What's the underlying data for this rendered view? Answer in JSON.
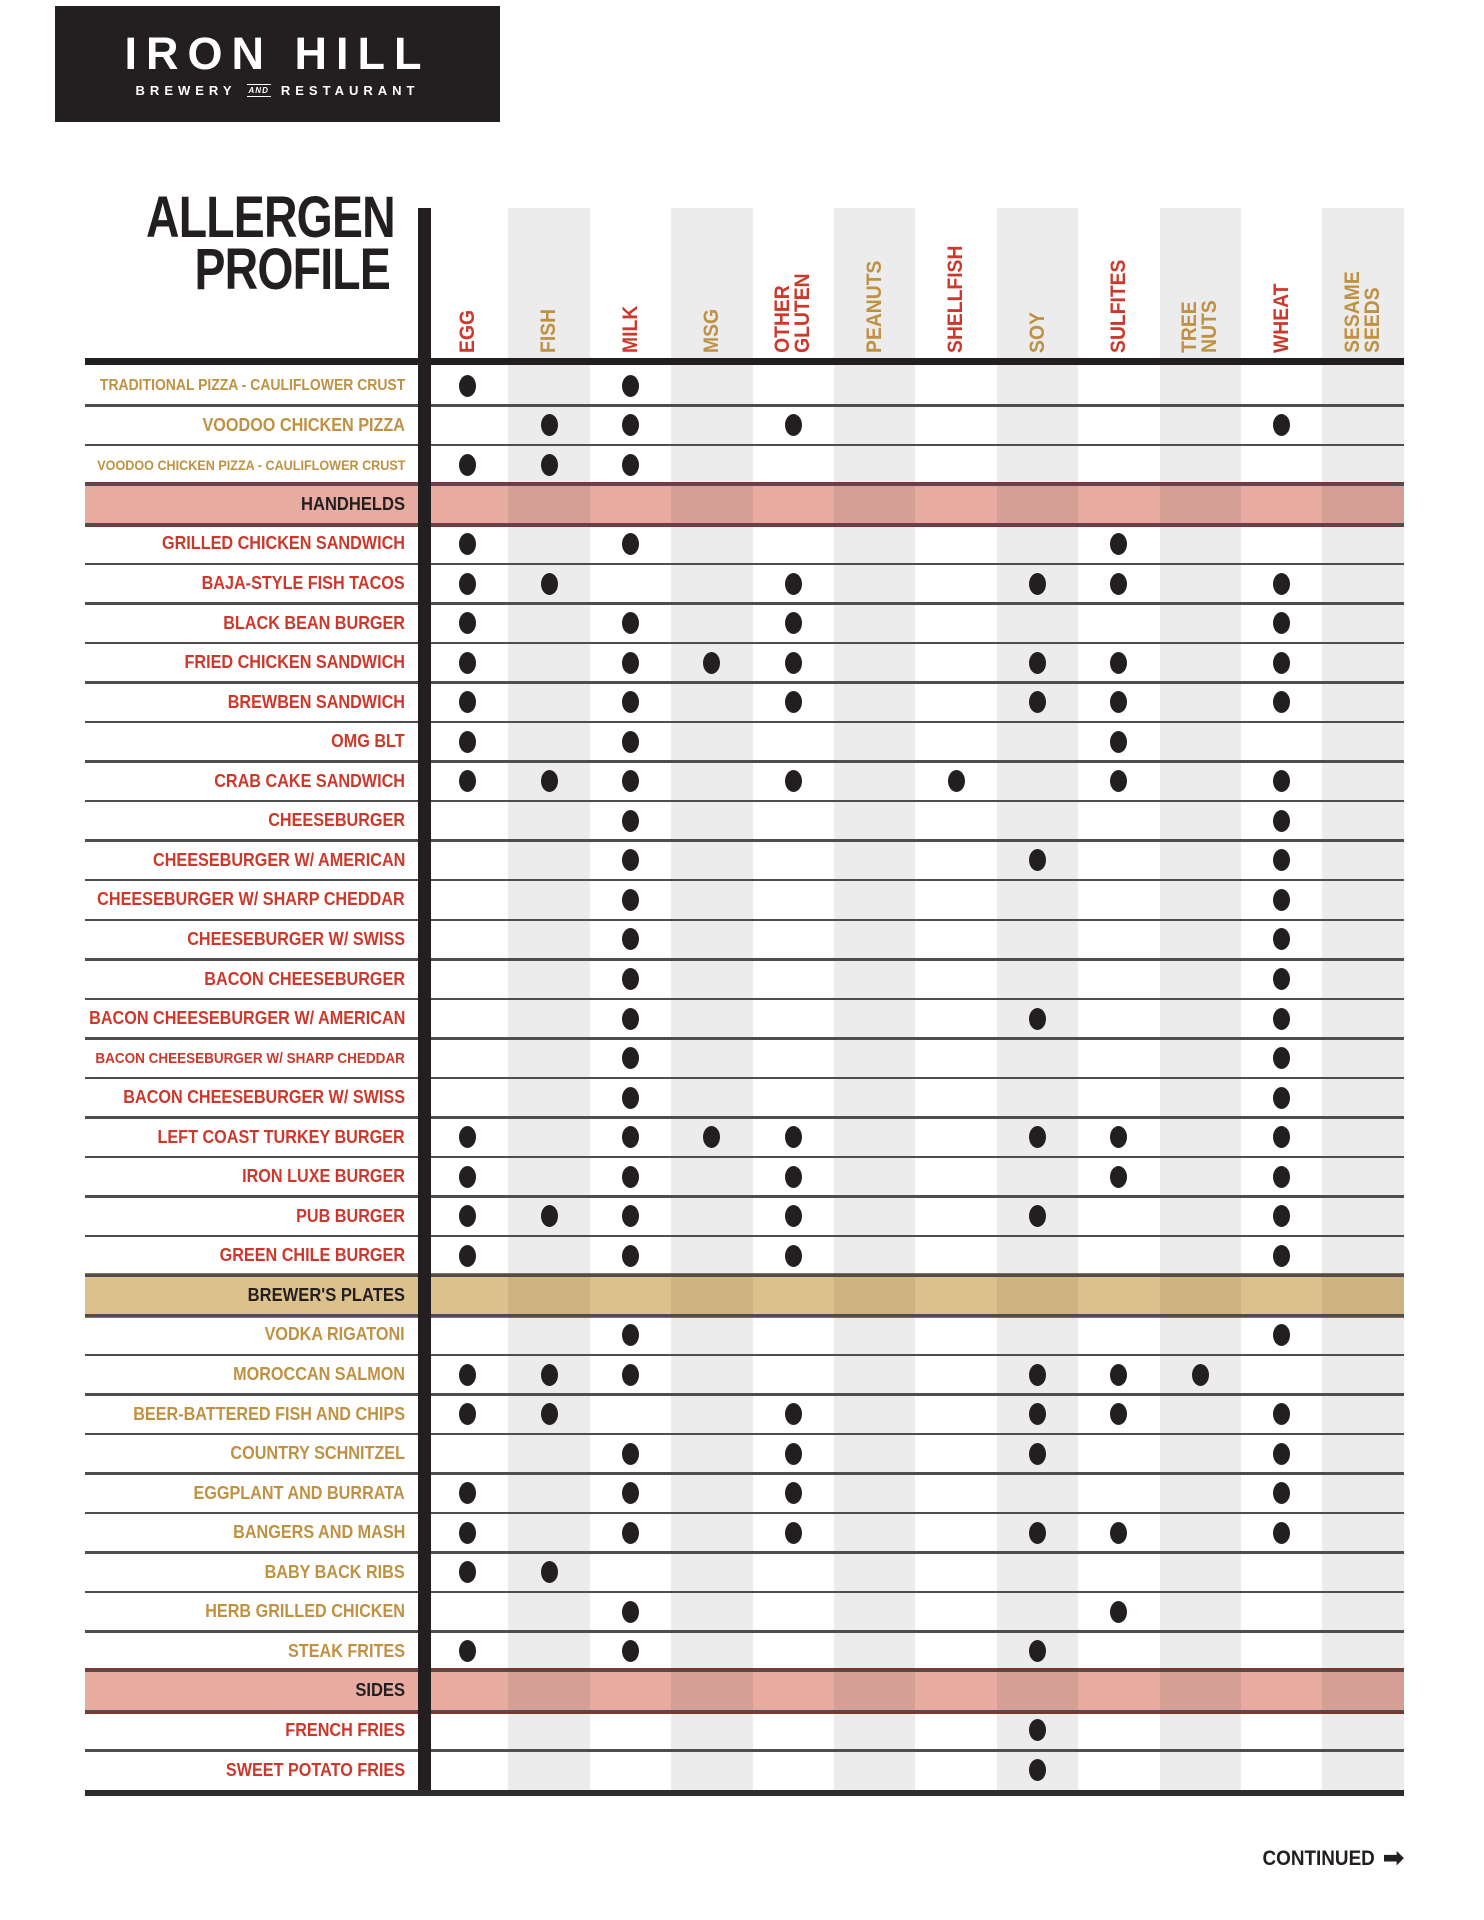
{
  "logo": {
    "wordmark": "IRON HILL",
    "tagline": {
      "left": "BREWERY",
      "mid": "AND",
      "right": "RESTAURANT"
    }
  },
  "title": {
    "line1": "ALLERGEN",
    "line2": "PROFILE"
  },
  "footer": {
    "continued": "CONTINUED",
    "arrow": "➡"
  },
  "colors": {
    "ink": "#231f20",
    "red": "#cc392c",
    "gold": "#bf9142",
    "stripe_overlay": "rgba(35,31,32,0.085)",
    "pink_band": "#e7aba0",
    "pink_band_border": "#7c3a30",
    "tan_band": "#ddc18c",
    "tan_band_border": "#8a7550",
    "divider": "#514d4e"
  },
  "columns": [
    {
      "key": "egg",
      "label": "EGG",
      "tone": "red"
    },
    {
      "key": "fish",
      "label": "FISH",
      "tone": "gold"
    },
    {
      "key": "milk",
      "label": "MILK",
      "tone": "red"
    },
    {
      "key": "msg",
      "label": "MSG",
      "tone": "gold"
    },
    {
      "key": "other_gluten",
      "label": "OTHER\nGLUTEN",
      "tone": "red"
    },
    {
      "key": "peanuts",
      "label": "PEANUTS",
      "tone": "gold"
    },
    {
      "key": "shellfish",
      "label": "SHELLFISH",
      "tone": "red"
    },
    {
      "key": "soy",
      "label": "SOY",
      "tone": "gold"
    },
    {
      "key": "sulfites",
      "label": "SULFITES",
      "tone": "red"
    },
    {
      "key": "tree_nuts",
      "label": "TREE NUTS",
      "tone": "gold"
    },
    {
      "key": "wheat",
      "label": "WHEAT",
      "tone": "red"
    },
    {
      "key": "sesame_seeds",
      "label": "SESAME\nSEEDS",
      "tone": "gold"
    }
  ],
  "rows": [
    {
      "label": "TRADITIONAL PIZZA - CAULIFLOWER CRUST",
      "tone": "gold",
      "size": 15.5,
      "allergens": [
        "egg",
        "milk"
      ]
    },
    {
      "label": "VOODOO CHICKEN PIZZA",
      "tone": "gold",
      "allergens": [
        "fish",
        "milk",
        "other_gluten",
        "wheat"
      ]
    },
    {
      "label": "VOODOO CHICKEN PIZZA - CAULIFLOWER CRUST",
      "tone": "gold",
      "size": 14,
      "allergens": [
        "egg",
        "fish",
        "milk"
      ]
    },
    {
      "section": "HANDHELDS",
      "band": "pink"
    },
    {
      "label": "GRILLED CHICKEN SANDWICH",
      "tone": "red",
      "allergens": [
        "egg",
        "milk",
        "sulfites"
      ]
    },
    {
      "label": "BAJA-STYLE FISH TACOS",
      "tone": "red",
      "allergens": [
        "egg",
        "fish",
        "other_gluten",
        "soy",
        "sulfites",
        "wheat"
      ]
    },
    {
      "label": "BLACK BEAN BURGER",
      "tone": "red",
      "allergens": [
        "egg",
        "milk",
        "other_gluten",
        "wheat"
      ]
    },
    {
      "label": "FRIED CHICKEN SANDWICH",
      "tone": "red",
      "allergens": [
        "egg",
        "milk",
        "msg",
        "other_gluten",
        "soy",
        "sulfites",
        "wheat"
      ]
    },
    {
      "label": "BREWBEN SANDWICH",
      "tone": "red",
      "allergens": [
        "egg",
        "milk",
        "other_gluten",
        "soy",
        "sulfites",
        "wheat"
      ]
    },
    {
      "label": "OMG BLT",
      "tone": "red",
      "allergens": [
        "egg",
        "milk",
        "sulfites"
      ]
    },
    {
      "label": "CRAB CAKE SANDWICH",
      "tone": "red",
      "allergens": [
        "egg",
        "fish",
        "milk",
        "other_gluten",
        "shellfish",
        "sulfites",
        "wheat"
      ]
    },
    {
      "label": "CHEESEBURGER",
      "tone": "red",
      "allergens": [
        "milk",
        "wheat"
      ]
    },
    {
      "label": "CHEESEBURGER W/ AMERICAN",
      "tone": "red",
      "allergens": [
        "milk",
        "soy",
        "wheat"
      ]
    },
    {
      "label": "CHEESEBURGER W/ SHARP CHEDDAR",
      "tone": "red",
      "allergens": [
        "milk",
        "wheat"
      ]
    },
    {
      "label": "CHEESEBURGER W/ SWISS",
      "tone": "red",
      "allergens": [
        "milk",
        "wheat"
      ]
    },
    {
      "label": "BACON CHEESEBURGER",
      "tone": "red",
      "allergens": [
        "milk",
        "wheat"
      ]
    },
    {
      "label": "BACON CHEESEBURGER W/ AMERICAN",
      "tone": "red",
      "allergens": [
        "milk",
        "soy",
        "wheat"
      ]
    },
    {
      "label": "BACON CHEESEBURGER W/ SHARP CHEDDAR",
      "tone": "red",
      "size": 15,
      "allergens": [
        "milk",
        "wheat"
      ]
    },
    {
      "label": "BACON CHEESEBURGER W/ SWISS",
      "tone": "red",
      "allergens": [
        "milk",
        "wheat"
      ]
    },
    {
      "label": "LEFT COAST TURKEY BURGER",
      "tone": "red",
      "allergens": [
        "egg",
        "milk",
        "msg",
        "other_gluten",
        "soy",
        "sulfites",
        "wheat"
      ]
    },
    {
      "label": "IRON LUXE BURGER",
      "tone": "red",
      "allergens": [
        "egg",
        "milk",
        "other_gluten",
        "sulfites",
        "wheat"
      ]
    },
    {
      "label": "PUB BURGER",
      "tone": "red",
      "allergens": [
        "egg",
        "fish",
        "milk",
        "other_gluten",
        "soy",
        "wheat"
      ]
    },
    {
      "label": "GREEN CHILE BURGER",
      "tone": "red",
      "allergens": [
        "egg",
        "milk",
        "other_gluten",
        "wheat"
      ]
    },
    {
      "section": "BREWER'S PLATES",
      "band": "tan"
    },
    {
      "label": "VODKA RIGATONI",
      "tone": "gold",
      "allergens": [
        "milk",
        "wheat"
      ]
    },
    {
      "label": "MOROCCAN SALMON",
      "tone": "gold",
      "allergens": [
        "egg",
        "fish",
        "milk",
        "soy",
        "sulfites",
        "tree_nuts"
      ]
    },
    {
      "label": "BEER-BATTERED FISH AND CHIPS",
      "tone": "gold",
      "allergens": [
        "egg",
        "fish",
        "other_gluten",
        "soy",
        "sulfites",
        "wheat"
      ]
    },
    {
      "label": "COUNTRY SCHNITZEL",
      "tone": "gold",
      "allergens": [
        "milk",
        "other_gluten",
        "soy",
        "wheat"
      ]
    },
    {
      "label": "EGGPLANT AND BURRATA",
      "tone": "gold",
      "allergens": [
        "egg",
        "milk",
        "other_gluten",
        "wheat"
      ]
    },
    {
      "label": "BANGERS AND MASH",
      "tone": "gold",
      "allergens": [
        "egg",
        "milk",
        "other_gluten",
        "soy",
        "sulfites",
        "wheat"
      ]
    },
    {
      "label": "BABY BACK RIBS",
      "tone": "gold",
      "allergens": [
        "egg",
        "fish"
      ]
    },
    {
      "label": "HERB GRILLED CHICKEN",
      "tone": "gold",
      "allergens": [
        "milk",
        "sulfites"
      ]
    },
    {
      "label": "STEAK FRITES",
      "tone": "gold",
      "allergens": [
        "egg",
        "milk",
        "soy"
      ]
    },
    {
      "section": "SIDES",
      "band": "pink"
    },
    {
      "label": "FRENCH FRIES",
      "tone": "red",
      "allergens": [
        "soy"
      ]
    },
    {
      "label": "SWEET POTATO FRIES",
      "tone": "red",
      "allergens": [
        "soy"
      ]
    }
  ]
}
